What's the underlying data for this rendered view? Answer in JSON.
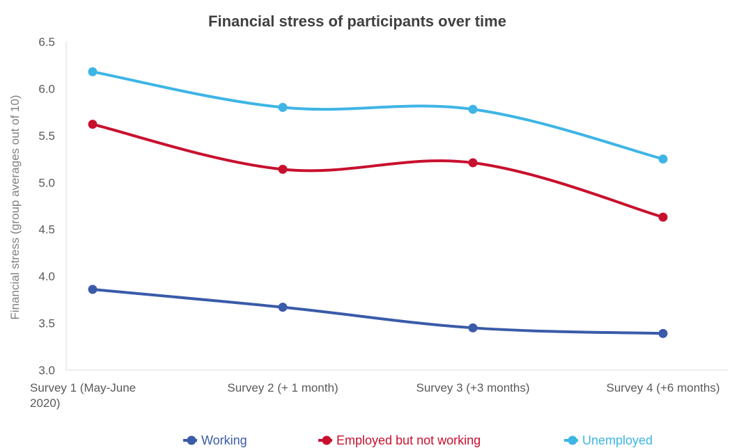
{
  "chart_data": {
    "type": "line",
    "title": "Financial stress of participants over time",
    "ylabel": "Financial stress (group averages out of 10)",
    "xlabel": "",
    "categories": [
      [
        "Survey 1 (May-June",
        "2020)"
      ],
      [
        "Survey 2 (+ 1 month)"
      ],
      [
        "Survey 3 (+3 months)"
      ],
      [
        "Survey 4 (+6 months)"
      ]
    ],
    "ylim": [
      3.0,
      6.5
    ],
    "yticks": [
      "3.0",
      "3.5",
      "4.0",
      "4.5",
      "5.0",
      "5.5",
      "6.0",
      "6.5"
    ],
    "grid": false,
    "legend_position": "bottom",
    "series": [
      {
        "name": "Working",
        "color": "#3A5BA9",
        "values": [
          3.86,
          3.67,
          3.45,
          3.39
        ]
      },
      {
        "name": "Employed but not working",
        "color": "#C8102E",
        "values": [
          5.62,
          5.14,
          5.21,
          4.63
        ]
      },
      {
        "name": "Unemployed",
        "color": "#3EB5E5",
        "values": [
          6.18,
          5.8,
          5.78,
          5.25
        ]
      }
    ]
  }
}
